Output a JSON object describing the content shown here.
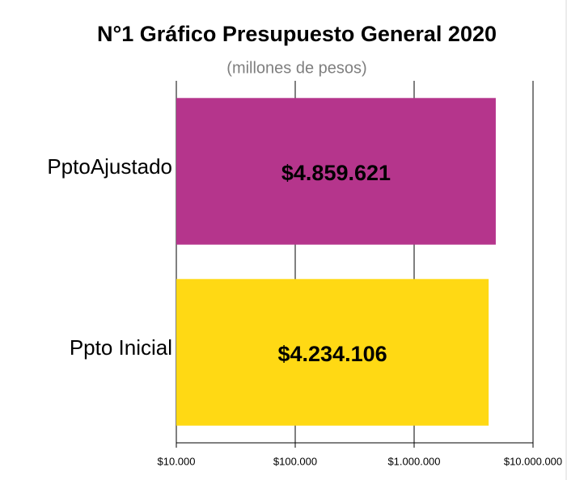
{
  "chart_data": {
    "type": "barh",
    "title": "N°1 Gráfico Presupuesto General 2020",
    "subtitle": "(millones de pesos)",
    "categories": [
      "PptoAjustado",
      "Ppto Inicial"
    ],
    "values": [
      4859621,
      4234106
    ],
    "value_labels": [
      "$4.859.621",
      "$4.234.106"
    ],
    "colors": [
      "#b5358c",
      "#ffd914"
    ],
    "xlim": [
      10000,
      10000000
    ],
    "xticks": [
      {
        "value": 10000,
        "label": "$10.000"
      },
      {
        "value": 100000,
        "label": "$100.000"
      },
      {
        "value": 1000000,
        "label": "$1.000.000"
      },
      {
        "value": 10000000,
        "label": "$10.000.000"
      }
    ],
    "log_x": true,
    "grid": true
  }
}
